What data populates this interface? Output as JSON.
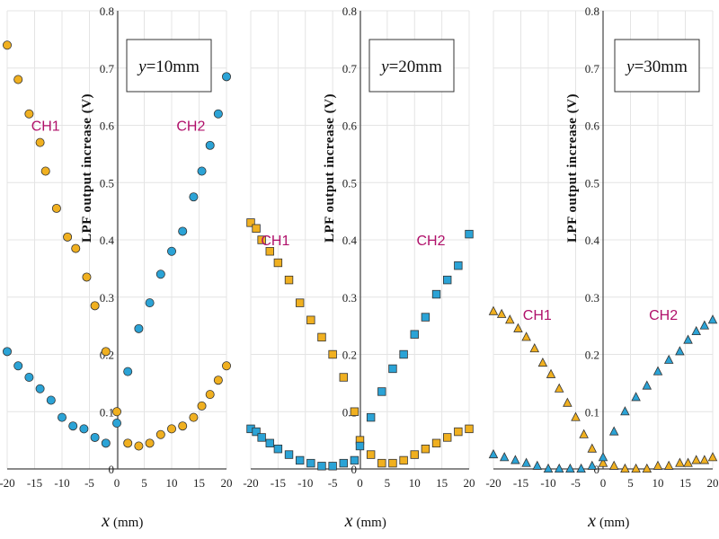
{
  "colors": {
    "ch1": "#f0b020",
    "ch2": "#2ba3d6",
    "annotation": "#b0106a",
    "grid": "#e4e4e4",
    "axis": "#444444",
    "marker_stroke": "#333333"
  },
  "chart_data": [
    {
      "type": "scatter",
      "marker": "circle",
      "box_label_italic": "y",
      "box_label_rest": "=10mm",
      "xlabel_var": "x",
      "xlabel_unit": "(mm)",
      "ylabel": "LPF output increase   (V)",
      "xlim": [
        -20,
        20
      ],
      "ylim": [
        0,
        0.8
      ],
      "xticks": [
        -20,
        -15,
        -10,
        -5,
        0,
        5,
        10,
        15,
        20
      ],
      "yticks": [
        0,
        0.1,
        0.2,
        0.3,
        0.4,
        0.5,
        0.6,
        0.7,
        0.8
      ],
      "annotations": [
        {
          "text": "CH1",
          "x": -13,
          "y": 0.6
        },
        {
          "text": "CH2",
          "x": 13.5,
          "y": 0.6
        }
      ],
      "series": [
        {
          "name": "CH1",
          "color_key": "ch1",
          "x": [
            -20,
            -18,
            -16,
            -14,
            -13,
            -11,
            -9,
            -7.5,
            -5.5,
            -4,
            -2,
            0,
            2,
            4,
            6,
            8,
            10,
            12,
            14,
            15.5,
            17,
            18.5,
            20
          ],
          "y": [
            0.74,
            0.68,
            0.62,
            0.57,
            0.52,
            0.455,
            0.405,
            0.385,
            0.335,
            0.285,
            0.205,
            0.1,
            0.045,
            0.04,
            0.045,
            0.06,
            0.07,
            0.075,
            0.09,
            0.11,
            0.13,
            0.155,
            0.18
          ]
        },
        {
          "name": "CH2",
          "color_key": "ch2",
          "x": [
            -20,
            -18,
            -16,
            -14,
            -12,
            -10,
            -8,
            -6,
            -4,
            -2,
            0,
            2,
            4,
            6,
            8,
            10,
            12,
            14,
            15.5,
            17,
            18.5,
            20
          ],
          "y": [
            0.205,
            0.18,
            0.16,
            0.14,
            0.12,
            0.09,
            0.075,
            0.07,
            0.055,
            0.045,
            0.08,
            0.17,
            0.245,
            0.29,
            0.34,
            0.38,
            0.415,
            0.475,
            0.52,
            0.565,
            0.62,
            0.685
          ]
        }
      ]
    },
    {
      "type": "scatter",
      "marker": "square",
      "box_label_italic": "y",
      "box_label_rest": "=20mm",
      "xlabel_var": "x",
      "xlabel_unit": "(mm)",
      "ylabel": "LPF output increase   (V)",
      "xlim": [
        -20,
        20
      ],
      "ylim": [
        0,
        0.8
      ],
      "xticks": [
        -20,
        -15,
        -10,
        -5,
        0,
        5,
        10,
        15,
        20
      ],
      "yticks": [
        0,
        0.1,
        0.2,
        0.3,
        0.4,
        0.5,
        0.6,
        0.7,
        0.8
      ],
      "annotations": [
        {
          "text": "CH1",
          "x": -15.5,
          "y": 0.4
        },
        {
          "text": "CH2",
          "x": 13,
          "y": 0.4
        }
      ],
      "series": [
        {
          "name": "CH1",
          "color_key": "ch1",
          "x": [
            -20,
            -19,
            -18,
            -16.5,
            -15,
            -13,
            -11,
            -9,
            -7,
            -5,
            -3,
            -1,
            0,
            2,
            4,
            6,
            8,
            10,
            12,
            14,
            16,
            18,
            20
          ],
          "y": [
            0.43,
            0.42,
            0.4,
            0.38,
            0.36,
            0.33,
            0.29,
            0.26,
            0.23,
            0.2,
            0.16,
            0.1,
            0.05,
            0.025,
            0.01,
            0.01,
            0.015,
            0.025,
            0.035,
            0.045,
            0.055,
            0.065,
            0.07
          ]
        },
        {
          "name": "CH2",
          "color_key": "ch2",
          "x": [
            -20,
            -19,
            -18,
            -16.5,
            -15,
            -13,
            -11,
            -9,
            -7,
            -5,
            -3,
            -1,
            0,
            2,
            4,
            6,
            8,
            10,
            12,
            14,
            16,
            18,
            20
          ],
          "y": [
            0.07,
            0.065,
            0.055,
            0.045,
            0.035,
            0.025,
            0.015,
            0.01,
            0.005,
            0.005,
            0.01,
            0.015,
            0.04,
            0.09,
            0.135,
            0.175,
            0.2,
            0.235,
            0.265,
            0.305,
            0.33,
            0.355,
            0.41
          ]
        }
      ]
    },
    {
      "type": "scatter",
      "marker": "triangle",
      "box_label_italic": "y",
      "box_label_rest": "=30mm",
      "xlabel_var": "x",
      "xlabel_unit": "(mm)",
      "ylabel": "LPF output increase   (V)",
      "xlim": [
        -20,
        20
      ],
      "ylim": [
        0,
        0.8
      ],
      "xticks": [
        -20,
        -15,
        -10,
        -5,
        0,
        5,
        10,
        15,
        20
      ],
      "yticks": [
        0,
        0.1,
        0.2,
        0.3,
        0.4,
        0.5,
        0.6,
        0.7,
        0.8
      ],
      "annotations": [
        {
          "text": "CH1",
          "x": -12,
          "y": 0.27
        },
        {
          "text": "CH2",
          "x": 11,
          "y": 0.27
        }
      ],
      "series": [
        {
          "name": "CH1",
          "color_key": "ch1",
          "x": [
            -20,
            -18.5,
            -17,
            -15.5,
            -14,
            -12.5,
            -11,
            -9.5,
            -8,
            -6.5,
            -5,
            -3.5,
            -2,
            0,
            2,
            4,
            6,
            8,
            10,
            12,
            14,
            15.5,
            17,
            18.5,
            20
          ],
          "y": [
            0.275,
            0.27,
            0.26,
            0.245,
            0.23,
            0.21,
            0.185,
            0.165,
            0.14,
            0.115,
            0.09,
            0.06,
            0.035,
            0.01,
            0.005,
            0.0,
            0.0,
            0.0,
            0.005,
            0.005,
            0.01,
            0.01,
            0.015,
            0.015,
            0.02
          ]
        },
        {
          "name": "CH2",
          "color_key": "ch2",
          "x": [
            -20,
            -18,
            -16,
            -14,
            -12,
            -10,
            -8,
            -6,
            -4,
            -2,
            0,
            2,
            4,
            6,
            8,
            10,
            12,
            14,
            15.5,
            17,
            18.5,
            20
          ],
          "y": [
            0.025,
            0.02,
            0.015,
            0.01,
            0.005,
            0.0,
            0.0,
            0.0,
            0.0,
            0.005,
            0.02,
            0.065,
            0.1,
            0.125,
            0.145,
            0.17,
            0.19,
            0.205,
            0.225,
            0.24,
            0.25,
            0.26
          ]
        }
      ]
    }
  ]
}
